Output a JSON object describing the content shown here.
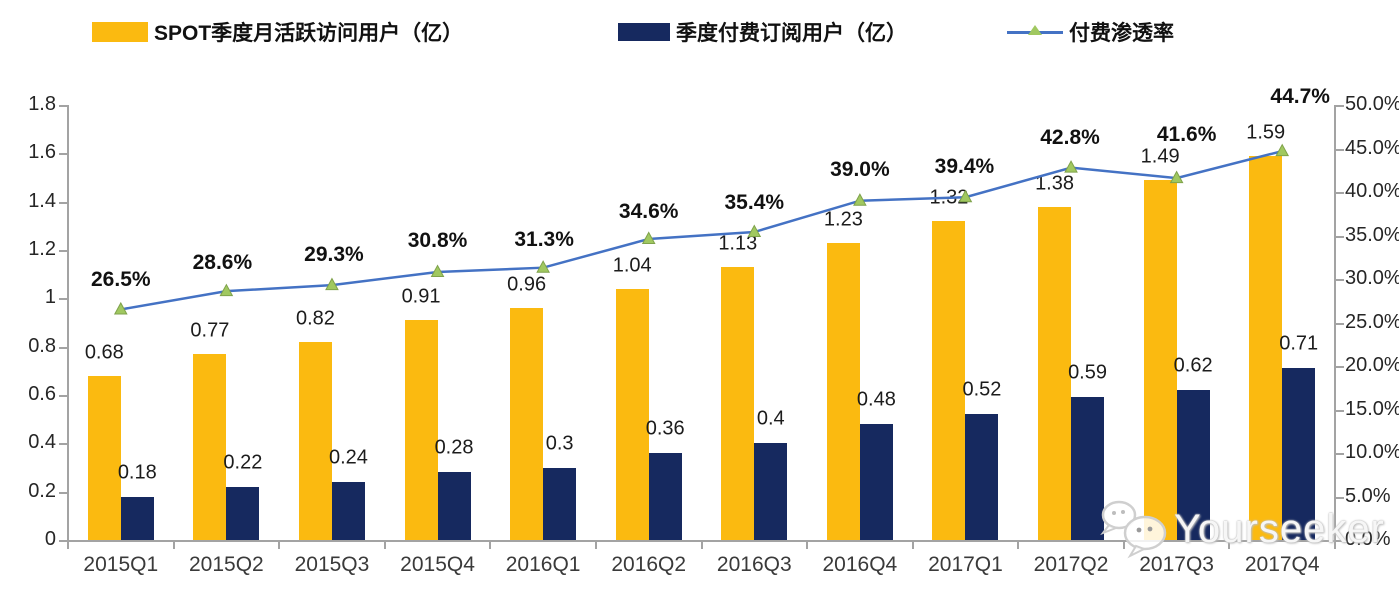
{
  "legend": {
    "items": [
      {
        "label": "SPOT季度月活跃访问用户（亿）",
        "swatch": "bar",
        "color": "#FBBA10"
      },
      {
        "label": "季度付费订阅用户（亿）",
        "swatch": "bar",
        "color": "#16295F"
      },
      {
        "label": "付费渗透率",
        "swatch": "line",
        "color": "#4472C4",
        "marker_color": "#A0C860"
      }
    ]
  },
  "watermark": {
    "text": "Yourseeker",
    "icon": "wechat-chat-bubbles-icon"
  },
  "chart_data": {
    "type": "bar+line combo",
    "background": "#FFFFFF",
    "grid": "off",
    "legend_position": "top",
    "categories": [
      "2015Q1",
      "2015Q2",
      "2015Q3",
      "2015Q4",
      "2016Q1",
      "2016Q2",
      "2016Q3",
      "2016Q4",
      "2017Q1",
      "2017Q2",
      "2017Q3",
      "2017Q4"
    ],
    "series": [
      {
        "name": "SPOT季度月活跃访问用户（亿）",
        "type": "bar",
        "axis": "left",
        "color": "#FBBA10",
        "values": [
          0.68,
          0.77,
          0.82,
          0.91,
          0.96,
          1.04,
          1.13,
          1.23,
          1.32,
          1.38,
          1.49,
          1.59
        ],
        "value_labels": [
          "0.68",
          "0.77",
          "0.82",
          "0.91",
          "0.96",
          "1.04",
          "1.13",
          "1.23",
          "1.32",
          "1.38",
          "1.49",
          "1.59"
        ]
      },
      {
        "name": "季度付费订阅用户（亿）",
        "type": "bar",
        "axis": "left",
        "color": "#16295F",
        "values": [
          0.18,
          0.22,
          0.24,
          0.28,
          0.3,
          0.36,
          0.4,
          0.48,
          0.52,
          0.59,
          0.62,
          0.71
        ],
        "value_labels": [
          "0.18",
          "0.22",
          "0.24",
          "0.28",
          "0.3",
          "0.36",
          "0.4",
          "0.48",
          "0.52",
          "0.59",
          "0.62",
          "0.71"
        ]
      },
      {
        "name": "付费渗透率",
        "type": "line",
        "axis": "right",
        "color": "#4472C4",
        "marker": "triangle-up",
        "marker_color": "#A0C860",
        "marker_edge": "#7FA24B",
        "values": [
          26.5,
          28.6,
          29.3,
          30.8,
          31.3,
          34.6,
          35.4,
          39.0,
          39.4,
          42.8,
          41.6,
          44.7
        ],
        "value_labels": [
          "26.5%",
          "28.6%",
          "29.3%",
          "30.8%",
          "31.3%",
          "34.6%",
          "35.4%",
          "39.0%",
          "39.4%",
          "42.8%",
          "41.6%",
          "44.7%"
        ],
        "label_offsets": [
          [
            0,
            -29
          ],
          [
            -4,
            -28
          ],
          [
            2,
            -30
          ],
          [
            0,
            -31
          ],
          [
            1,
            -28
          ],
          [
            0,
            -27
          ],
          [
            0,
            -29
          ],
          [
            0,
            -31
          ],
          [
            -1,
            -30
          ],
          [
            -1,
            -30
          ],
          [
            10,
            -43
          ],
          [
            18,
            -54
          ]
        ]
      }
    ],
    "left_axis": {
      "min": 0,
      "max": 1.8,
      "tick_labels": [
        "1.8",
        "1.6",
        "1.4",
        "1.2",
        "1",
        "0.8",
        "0.6",
        "0.4",
        "0.2",
        "0"
      ]
    },
    "right_axis": {
      "min": 0,
      "max": 50,
      "tick_labels": [
        "50.0%",
        "45.0%",
        "40.0%",
        "35.0%",
        "30.0%",
        "25.0%",
        "20.0%",
        "15.0%",
        "10.0%",
        "5.0%",
        "0.0%"
      ]
    }
  }
}
